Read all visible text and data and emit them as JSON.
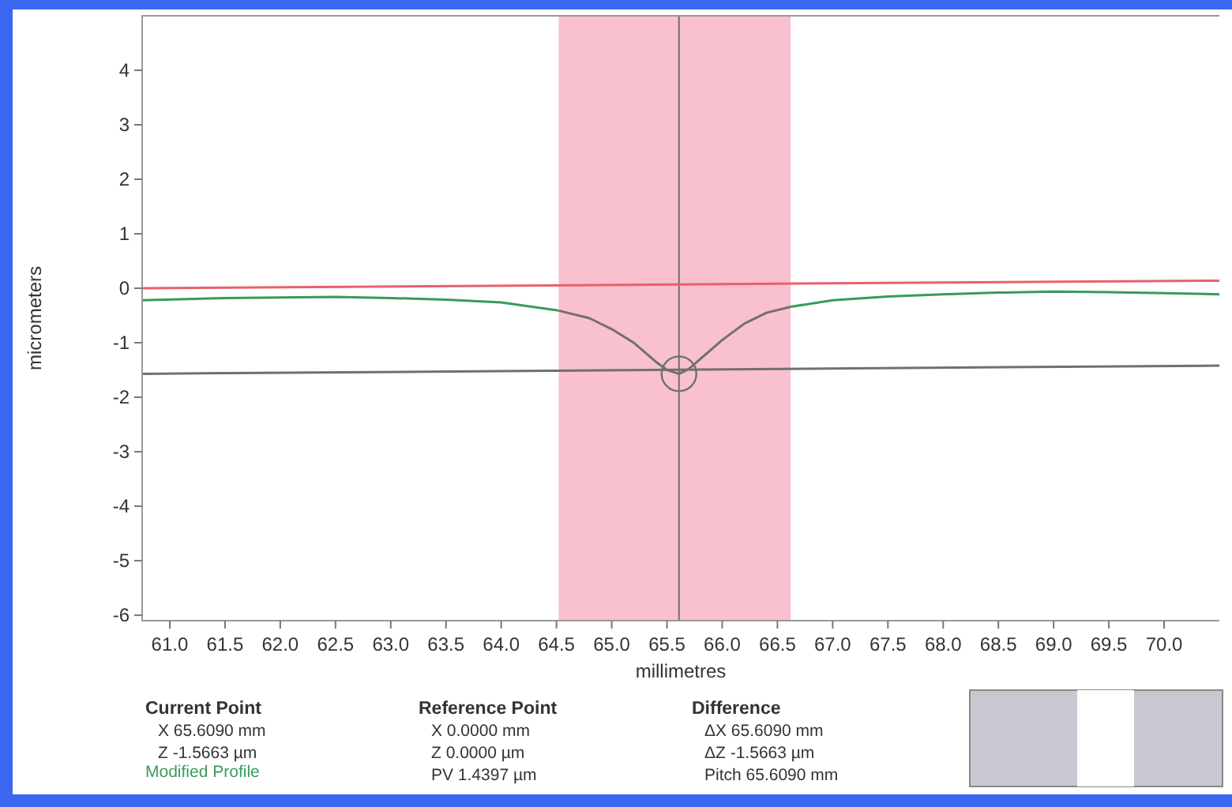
{
  "chart_data": {
    "type": "line",
    "xlabel": "millimetres",
    "ylabel": "micrometers",
    "xlim": [
      60.75,
      70.5
    ],
    "ylim": [
      -6.1,
      5
    ],
    "xticks": [
      {
        "value": 61,
        "label": "61.0"
      },
      {
        "value": 61.5,
        "label": "61.5"
      },
      {
        "value": 62,
        "label": "62.0"
      },
      {
        "value": 62.5,
        "label": "62.5"
      },
      {
        "value": 63,
        "label": "63.0"
      },
      {
        "value": 63.5,
        "label": "63.5"
      },
      {
        "value": 64,
        "label": "64.0"
      },
      {
        "value": 64.5,
        "label": "64.5"
      },
      {
        "value": 65,
        "label": "65.0"
      },
      {
        "value": 65.5,
        "label": "65.5"
      },
      {
        "value": 66,
        "label": "66.0"
      },
      {
        "value": 66.5,
        "label": "66.5"
      },
      {
        "value": 67,
        "label": "67.0"
      },
      {
        "value": 67.5,
        "label": "67.5"
      },
      {
        "value": 68,
        "label": "68.0"
      },
      {
        "value": 68.5,
        "label": "68.5"
      },
      {
        "value": 69,
        "label": "69.0"
      },
      {
        "value": 69.5,
        "label": "69.5"
      },
      {
        "value": 70,
        "label": "70.0"
      }
    ],
    "yticks": [
      -6,
      -5,
      -4,
      -3,
      -2,
      -1,
      0,
      1,
      2,
      3,
      4
    ],
    "grid": false,
    "marker": "none",
    "line_style": "solid",
    "series": [
      {
        "color": "#e8616a",
        "x": [
          60.75,
          70.5
        ],
        "values": [
          0,
          0.14
        ]
      },
      {
        "color": "#707070",
        "x": [
          60.75,
          70.5
        ],
        "values": [
          -1.57,
          -1.42
        ]
      },
      {
        "color": "#3a9a5a",
        "x": [
          60.75,
          61.5,
          62,
          62.5,
          63,
          63.5,
          64,
          64.52
        ],
        "values": [
          -0.22,
          -0.18,
          -0.17,
          -0.16,
          -0.18,
          -0.21,
          -0.26,
          -0.41
        ]
      },
      {
        "color": "#707070",
        "x": [
          64.52,
          64.8,
          65,
          65.2,
          65.4,
          65.5,
          65.609,
          65.7,
          65.8,
          66,
          66.2,
          66.4,
          66.62
        ],
        "values": [
          -0.41,
          -0.55,
          -0.75,
          -1,
          -1.35,
          -1.5,
          -1.57,
          -1.48,
          -1.3,
          -0.95,
          -0.65,
          -0.45,
          -0.34
        ]
      },
      {
        "color": "#3a9a5a",
        "x": [
          66.62,
          67,
          67.5,
          68,
          68.5,
          69,
          69.5,
          70,
          70.5
        ],
        "values": [
          -0.34,
          -0.22,
          -0.15,
          -0.11,
          -0.08,
          -0.06,
          -0.07,
          -0.09,
          -0.11
        ]
      },
      {
        "type": "scatter",
        "color": "#707070",
        "marker": "circle",
        "x": [
          65.609
        ],
        "values": [
          -1.57
        ]
      }
    ],
    "ref_lines": [
      {
        "axis": "x",
        "value": 65.609,
        "color": "#707070"
      }
    ],
    "bands": [
      {
        "axis": "x",
        "from": 64.52,
        "to": 66.62,
        "color": "#f9c0cf"
      }
    ],
    "annotations": [
      "Current Point",
      "X 65.6090 mm",
      "Z -1.5663 µm",
      "Modified Profile",
      "Reference Point",
      "X 0.0000 mm",
      "Z 0.0000 µm",
      "PV 1.4397 µm",
      "Difference",
      "ΔX 65.6090 mm",
      "ΔZ -1.5663 µm",
      "Pitch 65.6090 mm"
    ]
  }
}
